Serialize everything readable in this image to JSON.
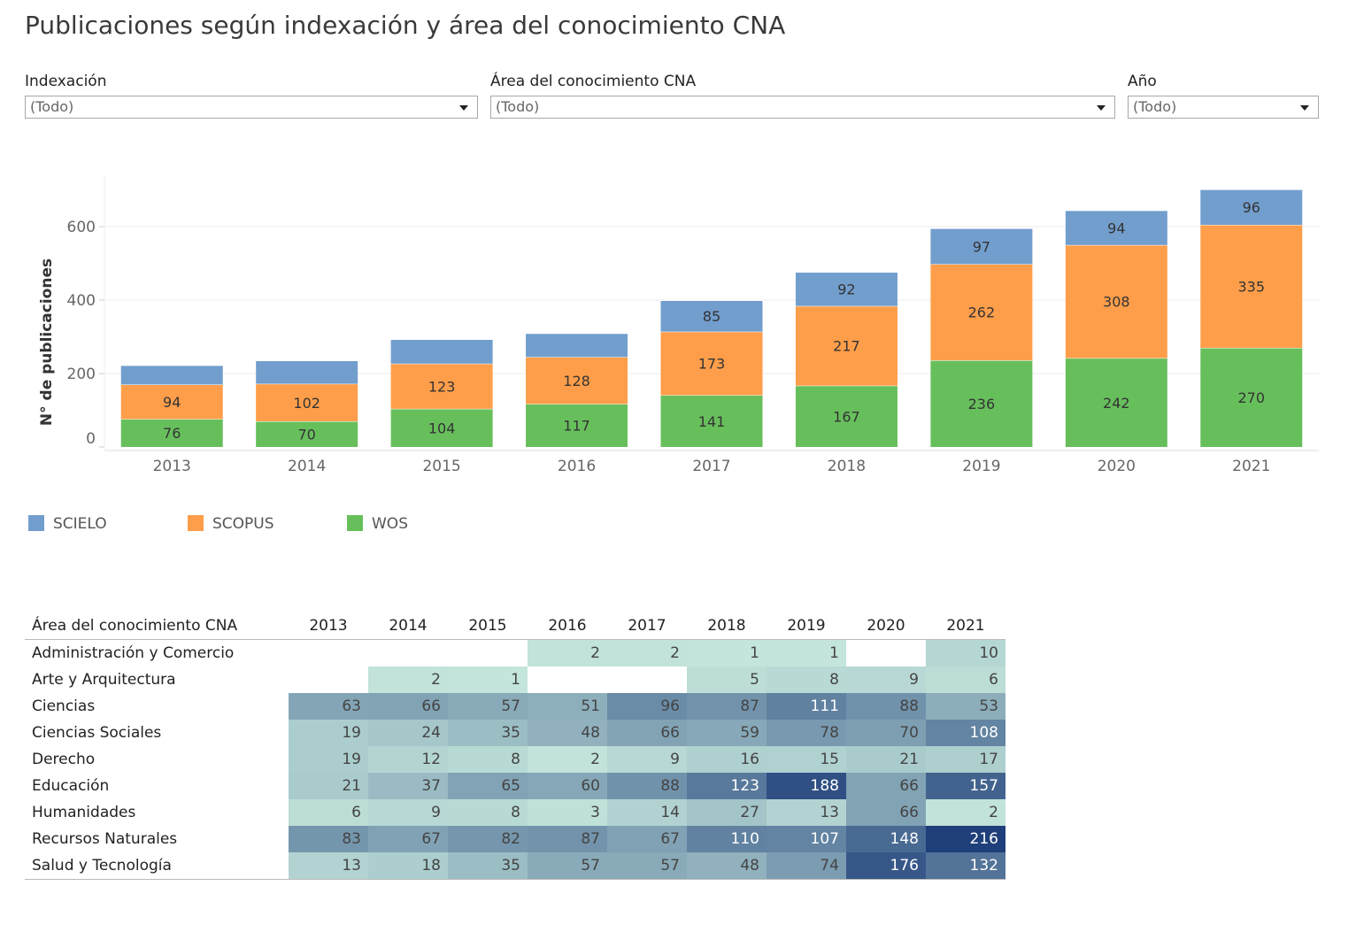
{
  "title": "Publicaciones según indexación  y área del conocimiento CNA",
  "filters": {
    "indexacion": {
      "label": "Indexación",
      "value": "(Todo)"
    },
    "area": {
      "label": "Área del conocimiento CNA",
      "value": "(Todo)"
    },
    "anio": {
      "label": "Año",
      "value": "(Todo)"
    }
  },
  "colors": {
    "scielo": "#729ece",
    "scopus": "#ff9e4a",
    "wos": "#67bf5c"
  },
  "chart_data": {
    "type": "bar",
    "stacked": true,
    "title": "",
    "xlabel": "",
    "ylabel": "N° de publicaciones",
    "ylim": [
      0,
      740
    ],
    "yticks": [
      0,
      200,
      400,
      600
    ],
    "categories": [
      "2013",
      "2014",
      "2015",
      "2016",
      "2017",
      "2018",
      "2019",
      "2020",
      "2021"
    ],
    "series": [
      {
        "name": "WOS",
        "values": [
          76,
          70,
          104,
          117,
          141,
          167,
          236,
          242,
          270
        ],
        "labels": [
          "76",
          "70",
          "104",
          "117",
          "141",
          "167",
          "236",
          "242",
          "270"
        ]
      },
      {
        "name": "SCOPUS",
        "values": [
          94,
          102,
          123,
          128,
          173,
          217,
          262,
          308,
          335
        ],
        "labels": [
          "94",
          "102",
          "123",
          "128",
          "173",
          "217",
          "262",
          "308",
          "335"
        ]
      },
      {
        "name": "SCIELO",
        "values": [
          52,
          63,
          66,
          64,
          85,
          92,
          97,
          94,
          96
        ],
        "labels": [
          "",
          "",
          "",
          "",
          "85",
          "92",
          "97",
          "94",
          "96"
        ]
      }
    ],
    "legend": [
      "SCIELO",
      "SCOPUS",
      "WOS"
    ]
  },
  "table": {
    "header": "Área del conocimiento CNA",
    "years": [
      "2013",
      "2014",
      "2015",
      "2016",
      "2017",
      "2018",
      "2019",
      "2020",
      "2021"
    ],
    "rows": [
      {
        "area": "Administración y Comercio",
        "values": [
          null,
          null,
          null,
          2,
          2,
          1,
          1,
          null,
          10
        ]
      },
      {
        "area": "Arte y Arquitectura",
        "values": [
          null,
          2,
          1,
          null,
          null,
          5,
          8,
          9,
          6
        ]
      },
      {
        "area": "Ciencias",
        "values": [
          63,
          66,
          57,
          51,
          96,
          87,
          111,
          88,
          53
        ]
      },
      {
        "area": "Ciencias Sociales",
        "values": [
          19,
          24,
          35,
          48,
          66,
          59,
          78,
          70,
          108
        ]
      },
      {
        "area": "Derecho",
        "values": [
          19,
          12,
          8,
          2,
          9,
          16,
          15,
          21,
          17
        ]
      },
      {
        "area": "Educación",
        "values": [
          21,
          37,
          65,
          60,
          88,
          123,
          188,
          66,
          157
        ]
      },
      {
        "area": "Humanidades",
        "values": [
          6,
          9,
          8,
          3,
          14,
          27,
          13,
          66,
          2
        ]
      },
      {
        "area": "Recursos Naturales",
        "values": [
          83,
          67,
          82,
          87,
          67,
          110,
          107,
          148,
          216
        ]
      },
      {
        "area": "Salud y Tecnología",
        "values": [
          13,
          18,
          35,
          57,
          57,
          48,
          74,
          176,
          132
        ]
      }
    ]
  }
}
